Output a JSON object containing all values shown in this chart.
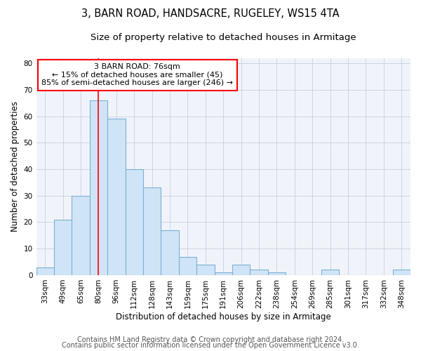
{
  "title": "3, BARN ROAD, HANDSACRE, RUGELEY, WS15 4TA",
  "subtitle": "Size of property relative to detached houses in Armitage",
  "xlabel": "Distribution of detached houses by size in Armitage",
  "ylabel": "Number of detached properties",
  "categories": [
    "33sqm",
    "49sqm",
    "65sqm",
    "80sqm",
    "96sqm",
    "112sqm",
    "128sqm",
    "143sqm",
    "159sqm",
    "175sqm",
    "191sqm",
    "206sqm",
    "222sqm",
    "238sqm",
    "254sqm",
    "269sqm",
    "285sqm",
    "301sqm",
    "317sqm",
    "332sqm",
    "348sqm"
  ],
  "values": [
    3,
    21,
    30,
    66,
    59,
    40,
    33,
    17,
    7,
    4,
    1,
    4,
    2,
    1,
    0,
    0,
    2,
    0,
    0,
    0,
    2
  ],
  "bar_color": "#d0e4f7",
  "bar_edge_color": "#7bafd4",
  "vline_x_index": 3,
  "vline_color": "red",
  "annotation_line1": "3 BARN ROAD: 76sqm",
  "annotation_line2": "← 15% of detached houses are smaller (45)",
  "annotation_line3": "85% of semi-detached houses are larger (246) →",
  "annotation_box_color": "white",
  "annotation_box_edge": "red",
  "ylim": [
    0,
    82
  ],
  "yticks": [
    0,
    10,
    20,
    30,
    40,
    50,
    60,
    70,
    80
  ],
  "footer1": "Contains HM Land Registry data © Crown copyright and database right 2024.",
  "footer2": "Contains public sector information licensed under the Open Government Licence v3.0.",
  "grid_color": "#c8d0dc",
  "bg_color": "#f0f4fa",
  "title_fontsize": 10.5,
  "subtitle_fontsize": 9.5,
  "axis_label_fontsize": 8.5,
  "tick_fontsize": 7.5,
  "annotation_fontsize": 8,
  "footer_fontsize": 7
}
